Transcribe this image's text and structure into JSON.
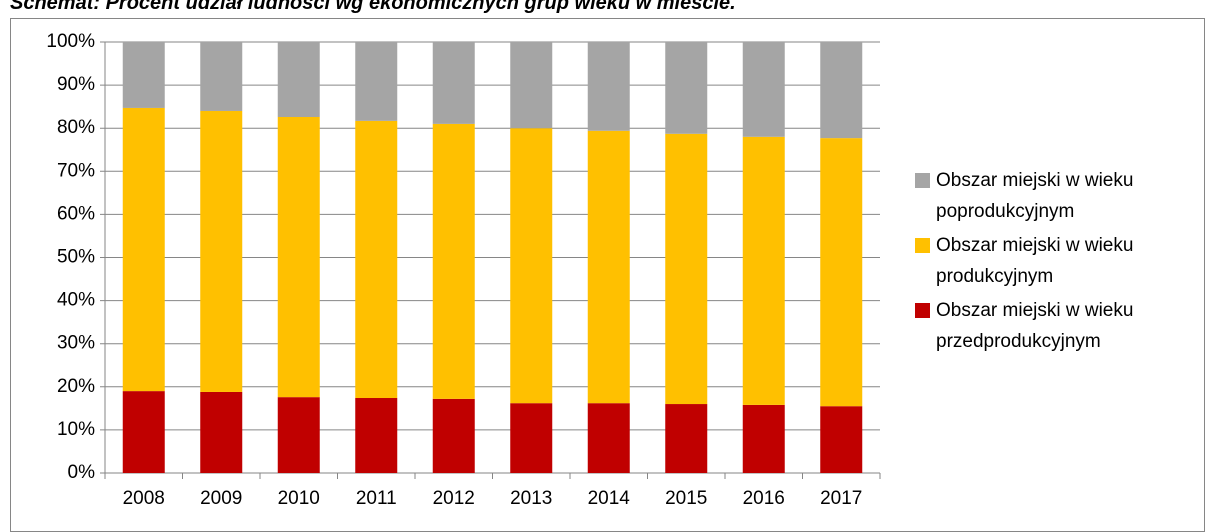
{
  "chart_data": {
    "type": "stacked_bar",
    "title": "Schemat: Procent udział ludności wg ekonomicznych grup wieku w mieście.",
    "categories": [
      "2008",
      "2009",
      "2010",
      "2011",
      "2012",
      "2013",
      "2014",
      "2015",
      "2016",
      "2017"
    ],
    "series": [
      {
        "name": "Obszar miejski w wieku przedprodukcyjnym",
        "color": "#c00000",
        "values": [
          19.0,
          18.8,
          17.6,
          17.4,
          17.2,
          16.2,
          16.2,
          16.0,
          15.8,
          15.5
        ]
      },
      {
        "name": "Obszar miejski w wieku produkcyjnym",
        "color": "#ffc000",
        "values": [
          65.7,
          65.2,
          65.0,
          64.3,
          63.8,
          63.8,
          63.2,
          62.7,
          62.2,
          62.2
        ]
      },
      {
        "name": "Obszar miejski w wieku poprodukcyjnym",
        "color": "#a5a5a5",
        "values": [
          15.3,
          16.0,
          17.4,
          18.3,
          19.0,
          20.0,
          20.6,
          21.3,
          22.0,
          22.3
        ]
      }
    ],
    "ylim": [
      0,
      100
    ],
    "yticks": [
      {
        "value": 0,
        "label": "0%"
      },
      {
        "value": 10,
        "label": "10%"
      },
      {
        "value": 20,
        "label": "20%"
      },
      {
        "value": 30,
        "label": "30%"
      },
      {
        "value": 40,
        "label": "40%"
      },
      {
        "value": 50,
        "label": "50%"
      },
      {
        "value": 60,
        "label": "60%"
      },
      {
        "value": 70,
        "label": "70%"
      },
      {
        "value": 80,
        "label": "80%"
      },
      {
        "value": 90,
        "label": "90%"
      },
      {
        "value": 100,
        "label": "100%"
      }
    ],
    "grid": true,
    "legend": "right"
  }
}
